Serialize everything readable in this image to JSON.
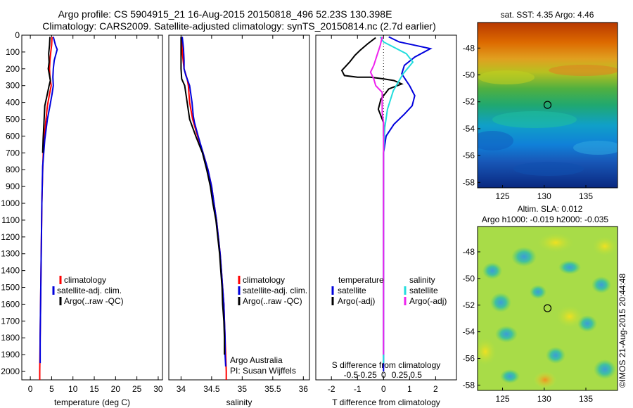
{
  "header": {
    "title_line1": "Argo profile: CS 5904915_21 16-Aug-2015 20150818_496 52.23S 130.398E",
    "title_line2": "Climatology: CARS2009. Satellite-adjusted climatology: synTS_20150814.nc (2.7d earlier)"
  },
  "colors": {
    "climatology": "#ff0000",
    "satellite": "#0000dd",
    "argo": "#000000",
    "argo_salinity": "#ee22ee",
    "satellite_salinity": "#22dddd"
  },
  "chart_data": [
    {
      "id": "temperature",
      "type": "line",
      "xlabel": "temperature (deg C)",
      "ylabel": "",
      "xlim": [
        -2,
        31
      ],
      "ylim": [
        2050,
        0
      ],
      "xticks": [
        0,
        5,
        10,
        15,
        20,
        25,
        30
      ],
      "yticks": [
        0,
        100,
        200,
        300,
        400,
        500,
        600,
        700,
        800,
        900,
        1000,
        1100,
        1200,
        1300,
        1400,
        1500,
        1600,
        1700,
        1800,
        1900,
        2000
      ],
      "legend": [
        "climatology",
        "satellite-adj. clim.",
        "Argo(..raw -QC)"
      ],
      "legend_position": "lower-right",
      "series": [
        {
          "name": "climatology",
          "color": "#ff0000",
          "points": [
            [
              5.1,
              10
            ],
            [
              5.0,
              60
            ],
            [
              4.8,
              100
            ],
            [
              4.6,
              150
            ],
            [
              4.5,
              200
            ],
            [
              4.6,
              250
            ],
            [
              4.9,
              300
            ],
            [
              4.5,
              350
            ],
            [
              4.0,
              420
            ],
            [
              3.6,
              520
            ],
            [
              3.1,
              650
            ],
            [
              2.9,
              800
            ],
            [
              2.7,
              1000
            ],
            [
              2.6,
              1200
            ],
            [
              2.5,
              1400
            ],
            [
              2.4,
              1600
            ],
            [
              2.3,
              1800
            ],
            [
              2.2,
              2000
            ],
            [
              2.2,
              2050
            ]
          ]
        },
        {
          "name": "satellite-adj. clim.",
          "color": "#0000dd",
          "points": [
            [
              5.4,
              10
            ],
            [
              5.9,
              60
            ],
            [
              6.3,
              85
            ],
            [
              5.6,
              150
            ],
            [
              5.4,
              200
            ],
            [
              5.3,
              250
            ],
            [
              5.4,
              300
            ],
            [
              5.1,
              350
            ],
            [
              4.6,
              420
            ],
            [
              4.0,
              500
            ],
            [
              3.4,
              620
            ],
            [
              2.9,
              780
            ],
            [
              2.7,
              1000
            ],
            [
              2.6,
              1200
            ],
            [
              2.5,
              1400
            ],
            [
              2.4,
              1600
            ],
            [
              2.3,
              1800
            ],
            [
              2.3,
              1950
            ]
          ]
        },
        {
          "name": "Argo(..raw -QC)",
          "color": "#000000",
          "points": [
            [
              4.6,
              10
            ],
            [
              4.5,
              60
            ],
            [
              4.3,
              110
            ],
            [
              4.4,
              160
            ],
            [
              4.2,
              200
            ],
            [
              4.5,
              240
            ],
            [
              4.7,
              270
            ],
            [
              4.4,
              300
            ],
            [
              3.9,
              360
            ],
            [
              3.4,
              420
            ],
            [
              3.2,
              520
            ],
            [
              3.0,
              620
            ],
            [
              2.9,
              700
            ]
          ]
        }
      ]
    },
    {
      "id": "salinity",
      "type": "line",
      "xlabel": "salinity",
      "ylabel": "",
      "xlim": [
        33.8,
        36.1
      ],
      "ylim": [
        2050,
        0
      ],
      "xticks": [
        34,
        34.5,
        35,
        35.5,
        36
      ],
      "xticklabels": [
        "34",
        "34.5",
        "35",
        "35.5",
        "36"
      ],
      "legend": [
        "climatology",
        "satellite-adj. clim.",
        "Argo(..raw -QC)"
      ],
      "legend_position": "lower-right",
      "annotation_line1": "Argo Australia",
      "annotation_line2": "PI: Susan Wijffels",
      "series": [
        {
          "name": "climatology",
          "color": "#ff0000",
          "points": [
            [
              34.01,
              10
            ],
            [
              34.02,
              100
            ],
            [
              34.05,
              200
            ],
            [
              34.1,
              260
            ],
            [
              34.12,
              300
            ],
            [
              34.14,
              400
            ],
            [
              34.19,
              500
            ],
            [
              34.27,
              600
            ],
            [
              34.36,
              700
            ],
            [
              34.44,
              800
            ],
            [
              34.5,
              900
            ],
            [
              34.54,
              1000
            ],
            [
              34.58,
              1100
            ],
            [
              34.61,
              1200
            ],
            [
              34.64,
              1300
            ],
            [
              34.66,
              1400
            ],
            [
              34.68,
              1500
            ],
            [
              34.7,
              1600
            ],
            [
              34.71,
              1700
            ],
            [
              34.72,
              1800
            ],
            [
              34.73,
              1900
            ],
            [
              34.74,
              2000
            ],
            [
              34.74,
              2050
            ]
          ]
        },
        {
          "name": "satellite-adj. clim.",
          "color": "#0000dd",
          "points": [
            [
              34.02,
              10
            ],
            [
              34.04,
              80
            ],
            [
              34.05,
              150
            ],
            [
              34.05,
              200
            ],
            [
              34.08,
              240
            ],
            [
              34.14,
              300
            ],
            [
              34.18,
              400
            ],
            [
              34.2,
              480
            ],
            [
              34.22,
              520
            ],
            [
              34.28,
              600
            ],
            [
              34.36,
              700
            ],
            [
              34.44,
              800
            ],
            [
              34.5,
              900
            ],
            [
              34.54,
              1000
            ],
            [
              34.58,
              1100
            ],
            [
              34.61,
              1200
            ],
            [
              34.64,
              1300
            ],
            [
              34.66,
              1400
            ],
            [
              34.68,
              1500
            ],
            [
              34.7,
              1600
            ],
            [
              34.71,
              1700
            ],
            [
              34.72,
              1800
            ],
            [
              34.72,
              1900
            ],
            [
              34.73,
              1970
            ]
          ]
        },
        {
          "name": "Argo(..raw -QC)",
          "color": "#000000",
          "points": [
            [
              34.0,
              10
            ],
            [
              34.0,
              100
            ],
            [
              34.0,
              200
            ],
            [
              34.01,
              260
            ],
            [
              34.06,
              300
            ],
            [
              34.1,
              400
            ],
            [
              34.14,
              500
            ],
            [
              34.24,
              600
            ],
            [
              34.35,
              700
            ],
            [
              34.42,
              800
            ],
            [
              34.48,
              900
            ],
            [
              34.52,
              1000
            ],
            [
              34.57,
              1100
            ],
            [
              34.6,
              1200
            ],
            [
              34.63,
              1300
            ],
            [
              34.65,
              1400
            ],
            [
              34.67,
              1500
            ],
            [
              34.68,
              1600
            ],
            [
              34.7,
              1700
            ],
            [
              34.71,
              1800
            ],
            [
              34.71,
              1900
            ]
          ]
        }
      ]
    },
    {
      "id": "difference",
      "type": "line",
      "xlabel": "T difference from climatology",
      "xlabel_top": "S difference from climatology",
      "ylabel": "",
      "xlim": [
        -2.6,
        2.8
      ],
      "ylim": [
        2050,
        0
      ],
      "xticks": [
        -2,
        -1,
        0,
        1,
        2
      ],
      "s_xticks": [
        -0.5,
        -0.25,
        0,
        0.25,
        0.5
      ],
      "s_xticklabels": [
        "-0.5",
        "-0.25",
        "0",
        "0.25",
        "0.5"
      ],
      "legend_header_left": "temperature",
      "legend_header_right": "salinity",
      "legend": [
        "satellite",
        "Argo(-adj)",
        "satellite",
        "Argo(-adj)"
      ],
      "legend_position": "lower-center",
      "series": [
        {
          "name": "T satellite",
          "color": "#0000dd",
          "points": [
            [
              0.2,
              10
            ],
            [
              0.6,
              40
            ],
            [
              1.2,
              60
            ],
            [
              1.8,
              80
            ],
            [
              1.2,
              130
            ],
            [
              0.8,
              180
            ],
            [
              0.7,
              230
            ],
            [
              1.0,
              300
            ],
            [
              1.2,
              360
            ],
            [
              1.1,
              420
            ],
            [
              0.8,
              470
            ],
            [
              0.4,
              530
            ],
            [
              0.1,
              600
            ],
            [
              0.0,
              700
            ],
            [
              0.0,
              1000
            ],
            [
              0.0,
              1500
            ],
            [
              0.0,
              2000
            ]
          ]
        },
        {
          "name": "T Argo(-adj)",
          "color": "#000000",
          "points": [
            [
              -0.3,
              15
            ],
            [
              -0.6,
              50
            ],
            [
              -0.9,
              90
            ],
            [
              -1.1,
              120
            ],
            [
              -1.3,
              160
            ],
            [
              -1.6,
              210
            ],
            [
              -1.5,
              240
            ],
            [
              -1.0,
              250
            ],
            [
              -0.5,
              250
            ],
            [
              0.0,
              260
            ],
            [
              0.4,
              270
            ],
            [
              0.7,
              290
            ],
            [
              0.2,
              320
            ],
            [
              -0.1,
              380
            ],
            [
              -0.2,
              440
            ],
            [
              0.0,
              520
            ],
            [
              0.0,
              600
            ]
          ]
        },
        {
          "name": "S satellite",
          "color": "#22dddd",
          "points": [
            [
              -0.05,
              10
            ],
            [
              0.0,
              40
            ],
            [
              0.2,
              80
            ],
            [
              0.35,
              110
            ],
            [
              0.45,
              160
            ],
            [
              0.3,
              230
            ],
            [
              0.15,
              330
            ],
            [
              0.06,
              440
            ],
            [
              0.02,
              550
            ],
            [
              0.0,
              700
            ],
            [
              0.0,
              1000
            ],
            [
              0.0,
              1500
            ],
            [
              0.0,
              1950
            ]
          ]
        },
        {
          "name": "S Argo(-adj)",
          "color": "#ee22ee",
          "points": [
            [
              -0.02,
              10
            ],
            [
              -0.05,
              60
            ],
            [
              -0.1,
              120
            ],
            [
              -0.15,
              180
            ],
            [
              -0.2,
              220
            ],
            [
              -0.15,
              260
            ],
            [
              -0.12,
              300
            ],
            [
              -0.02,
              340
            ],
            [
              -0.02,
              400
            ],
            [
              -0.02,
              460
            ],
            [
              0.0,
              520
            ],
            [
              0.0,
              800
            ],
            [
              0.0,
              1200
            ],
            [
              0.0,
              1600
            ],
            [
              0.0,
              1900
            ]
          ]
        }
      ]
    },
    {
      "id": "sst_map",
      "type": "heatmap",
      "title": "sat. SST: 4.35 Argo: 4.46",
      "xticks": [
        125,
        130,
        135
      ],
      "yticks": [
        -48,
        -50,
        -52,
        -54,
        -56,
        -58
      ],
      "xlim": [
        122,
        138.8
      ],
      "ylim": [
        -58.4,
        -46.1
      ],
      "marker": {
        "lon": 130.398,
        "lat": -52.23
      }
    },
    {
      "id": "sla_map",
      "type": "heatmap",
      "title_line1": "Altim. SLA: 0.012",
      "title_line2": "Argo h1000: -0.019 h2000: -0.035",
      "xticks": [
        125,
        130,
        135
      ],
      "yticks": [
        -48,
        -50,
        -52,
        -54,
        -56,
        -58
      ],
      "xlim": [
        122,
        138.8
      ],
      "ylim": [
        -58.4,
        -46.1
      ],
      "marker": {
        "lon": 130.398,
        "lat": -52.23
      }
    }
  ],
  "footer": {
    "credit": "©IMOS 21-Aug-2015 20:44:48"
  }
}
